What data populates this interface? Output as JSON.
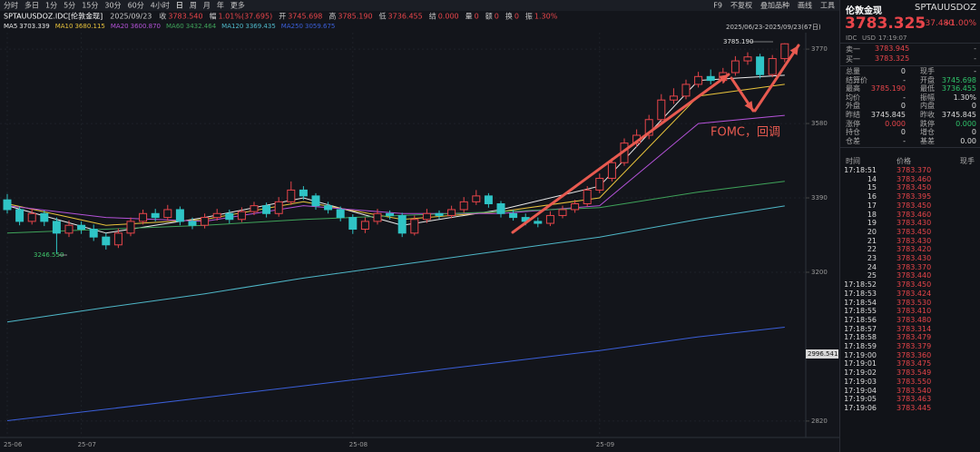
{
  "toolbar": {
    "periods": [
      "分时",
      "多日",
      "1分",
      "5分",
      "15分",
      "30分",
      "60分",
      "4小时",
      "日",
      "周",
      "月",
      "年",
      "更多"
    ],
    "tools": [
      "F9",
      "不复权",
      "叠加品种",
      "画线",
      "工具"
    ]
  },
  "info_line": {
    "symbol": "SPTAUUSDOZ.IDC[伦敦金现]",
    "date": "2025/09/23",
    "fields": [
      {
        "label": "收",
        "value": "3783.540"
      },
      {
        "label": "幅",
        "value": "1.01%(37.695)"
      },
      {
        "label": "开",
        "value": "3745.698"
      },
      {
        "label": "高",
        "value": "3785.190"
      },
      {
        "label": "低",
        "value": "3736.455"
      },
      {
        "label": "结",
        "value": "0.000"
      },
      {
        "label": "量",
        "value": "0"
      },
      {
        "label": "额",
        "value": "0"
      },
      {
        "label": "换",
        "value": "0"
      },
      {
        "label": "振",
        "value": "1.30%"
      }
    ]
  },
  "date_range": "2025/06/23-2025/09/23(67日)",
  "chart_data": {
    "type": "candlestick",
    "categories": [
      "25-06",
      null,
      null,
      null,
      null,
      null,
      "25-07",
      null,
      null,
      null,
      null,
      null,
      null,
      null,
      null,
      null,
      null,
      null,
      null,
      null,
      null,
      null,
      null,
      null,
      null,
      null,
      null,
      null,
      "25-08",
      null,
      null,
      null,
      null,
      null,
      null,
      null,
      null,
      null,
      null,
      null,
      null,
      null,
      null,
      null,
      null,
      null,
      null,
      null,
      "25-09",
      null,
      null,
      null,
      null,
      null,
      null,
      null,
      null,
      null,
      null,
      null,
      null,
      null,
      null,
      null
    ],
    "open": [
      3385,
      3360,
      3330,
      3350,
      3330,
      3300,
      3320,
      3310,
      3290,
      3270,
      3300,
      3330,
      3350,
      3340,
      3360,
      3330,
      3320,
      3340,
      3350,
      3335,
      3355,
      3370,
      3350,
      3380,
      3410,
      3395,
      3370,
      3360,
      3340,
      3310,
      3330,
      3350,
      3345,
      3300,
      3335,
      3350,
      3345,
      3360,
      3380,
      3395,
      3375,
      3350,
      3340,
      3330,
      3325,
      3345,
      3360,
      3375,
      3410,
      3440,
      3480,
      3530,
      3550,
      3590,
      3640,
      3650,
      3680,
      3700,
      3690,
      3710,
      3740,
      3750,
      3705,
      3745.698
    ],
    "high": [
      3400,
      3368,
      3362,
      3358,
      3340,
      3332,
      3330,
      3322,
      3300,
      3312,
      3340,
      3360,
      3362,
      3372,
      3368,
      3340,
      3350,
      3362,
      3360,
      3366,
      3380,
      3378,
      3392,
      3432,
      3420,
      3402,
      3380,
      3368,
      3348,
      3340,
      3362,
      3358,
      3352,
      3345,
      3362,
      3358,
      3370,
      3392,
      3410,
      3402,
      3382,
      3360,
      3350,
      3340,
      3356,
      3370,
      3385,
      3420,
      3452,
      3492,
      3542,
      3565,
      3602,
      3655,
      3670,
      3692,
      3712,
      3718,
      3722,
      3752,
      3762,
      3758,
      3755,
      3785.19
    ],
    "low": [
      3350,
      3320,
      3322,
      3318,
      3246.55,
      3290,
      3298,
      3280,
      3258,
      3262,
      3292,
      3322,
      3330,
      3332,
      3320,
      3310,
      3312,
      3332,
      3325,
      3328,
      3346,
      3340,
      3342,
      3372,
      3385,
      3360,
      3350,
      3330,
      3298,
      3300,
      3322,
      3335,
      3290,
      3294,
      3326,
      3336,
      3338,
      3352,
      3372,
      3365,
      3340,
      3332,
      3320,
      3315,
      3318,
      3338,
      3352,
      3368,
      3402,
      3432,
      3472,
      3520,
      3540,
      3582,
      3630,
      3642,
      3672,
      3680,
      3682,
      3702,
      3730,
      3695,
      3698,
      3736.455
    ],
    "close": [
      3360,
      3330,
      3350,
      3330,
      3300,
      3320,
      3310,
      3290,
      3270,
      3300,
      3330,
      3350,
      3340,
      3360,
      3330,
      3320,
      3340,
      3350,
      3335,
      3355,
      3370,
      3350,
      3380,
      3410,
      3395,
      3370,
      3360,
      3340,
      3310,
      3330,
      3350,
      3345,
      3300,
      3335,
      3350,
      3345,
      3360,
      3380,
      3395,
      3375,
      3350,
      3340,
      3330,
      3325,
      3345,
      3360,
      3375,
      3410,
      3440,
      3480,
      3530,
      3550,
      3590,
      3640,
      3650,
      3680,
      3700,
      3690,
      3710,
      3740,
      3750,
      3705,
      3745.845,
      3783.54
    ],
    "up_color": "#e8454a",
    "down_color": "#2fc4c6",
    "ylim": [
      2778,
      3812
    ],
    "yticks": [
      2820,
      3200,
      3390,
      3580,
      3770
    ],
    "grid": true,
    "series": [
      {
        "name": "MA5",
        "last": "3703.339",
        "color": "#e9e9e9",
        "x": [
          0,
          8,
          16,
          24,
          32,
          40,
          48,
          56,
          63
        ],
        "values": [
          3370,
          3300,
          3340,
          3390,
          3320,
          3360,
          3420,
          3690,
          3703.339
        ]
      },
      {
        "name": "MA10",
        "last": "3680.115",
        "color": "#e8c33c",
        "x": [
          0,
          8,
          16,
          24,
          32,
          40,
          48,
          56,
          63
        ],
        "values": [
          3375,
          3320,
          3335,
          3380,
          3335,
          3355,
          3390,
          3650,
          3680.115
        ]
      },
      {
        "name": "MA20",
        "last": "3600.870",
        "color": "#b452d8",
        "x": [
          0,
          8,
          16,
          24,
          32,
          40,
          48,
          56,
          63
        ],
        "values": [
          3370,
          3340,
          3330,
          3370,
          3350,
          3350,
          3370,
          3580,
          3600.87
        ]
      },
      {
        "name": "MA60",
        "last": "3432.464",
        "color": "#3fa35a",
        "x": [
          0,
          8,
          16,
          24,
          32,
          40,
          48,
          56,
          63
        ],
        "values": [
          3300,
          3310,
          3320,
          3335,
          3345,
          3355,
          3365,
          3405,
          3432.464
        ]
      },
      {
        "name": "MA120",
        "last": "3369.435",
        "color": "#4fb8c9",
        "x": [
          0,
          8,
          16,
          24,
          32,
          40,
          48,
          56,
          63
        ],
        "values": [
          3073,
          3110,
          3145,
          3185,
          3220,
          3255,
          3290,
          3335,
          3369.435
        ]
      },
      {
        "name": "MA250",
        "last": "3059.675",
        "color": "#3b5fd9",
        "x": [
          0,
          8,
          16,
          24,
          32,
          40,
          48,
          56,
          63
        ],
        "values": [
          2821,
          2850,
          2880,
          2910,
          2940,
          2970,
          3000,
          3035,
          3059.675
        ]
      }
    ],
    "high_label": "3785.190",
    "low_label": "3246.550",
    "cursor_label": "2996.541",
    "annotation": "FOMC，回调"
  },
  "quote": {
    "name": "伦敦金现",
    "code": "SPTAUUSDOZ",
    "price": "3783.325",
    "change": "+37.480",
    "change_pct": "+1.00%",
    "source": "IDC",
    "currency": "USD",
    "time": "17:19:07",
    "book": [
      {
        "label": "卖一",
        "price": "3783.945",
        "volume": "-"
      },
      {
        "label": "买一",
        "price": "3783.325",
        "volume": "-"
      }
    ],
    "stats": [
      [
        {
          "label": "总量",
          "value": "0"
        },
        {
          "label": "现手",
          "value": "-"
        }
      ],
      [
        {
          "label": "结算价",
          "value": "-"
        },
        {
          "label": "开盘",
          "value": "3745.698",
          "color": "#2fc46a"
        }
      ],
      [
        {
          "label": "最高",
          "value": "3785.190",
          "color": "#e8454a"
        },
        {
          "label": "最低",
          "value": "3736.455",
          "color": "#2fc46a"
        }
      ],
      [
        {
          "label": "均价",
          "value": "-"
        },
        {
          "label": "振幅",
          "value": "1.30%"
        }
      ],
      [
        {
          "label": "外盘",
          "value": "0"
        },
        {
          "label": "内盘",
          "value": "0"
        }
      ],
      [
        {
          "label": "昨结",
          "value": "3745.845"
        },
        {
          "label": "昨收",
          "value": "3745.845"
        }
      ],
      [
        {
          "label": "涨停",
          "value": "0.000",
          "color": "#e8454a"
        },
        {
          "label": "跌停",
          "value": "0.000",
          "color": "#2fc46a"
        }
      ],
      [
        {
          "label": "持仓",
          "value": "0"
        },
        {
          "label": "增仓",
          "value": "0"
        }
      ],
      [
        {
          "label": "仓差",
          "value": "-"
        },
        {
          "label": "基差",
          "value": "0.00"
        }
      ]
    ]
  },
  "ticks": {
    "headers": [
      "时间",
      "价格",
      "现手"
    ],
    "rows": [
      [
        "17:18:51",
        "3783.370"
      ],
      [
        "14",
        "3783.460"
      ],
      [
        "15",
        "3783.450"
      ],
      [
        "16",
        "3783.395"
      ],
      [
        "17",
        "3783.450"
      ],
      [
        "18",
        "3783.460"
      ],
      [
        "19",
        "3783.430"
      ],
      [
        "20",
        "3783.450"
      ],
      [
        "21",
        "3783.430"
      ],
      [
        "22",
        "3783.420"
      ],
      [
        "23",
        "3783.430"
      ],
      [
        "24",
        "3783.370"
      ],
      [
        "25",
        "3783.440"
      ],
      [
        "17:18:52",
        "3783.450"
      ],
      [
        "17:18:53",
        "3783.424"
      ],
      [
        "17:18:54",
        "3783.530"
      ],
      [
        "17:18:55",
        "3783.410"
      ],
      [
        "17:18:56",
        "3783.480"
      ],
      [
        "17:18:57",
        "3783.314"
      ],
      [
        "17:18:58",
        "3783.479"
      ],
      [
        "17:18:59",
        "3783.379"
      ],
      [
        "17:19:00",
        "3783.360"
      ],
      [
        "17:19:01",
        "3783.475"
      ],
      [
        "17:19:02",
        "3783.549"
      ],
      [
        "17:19:03",
        "3783.550"
      ],
      [
        "17:19:04",
        "3783.540"
      ],
      [
        "17:19:05",
        "3783.463"
      ],
      [
        "17:19:06",
        "3783.445"
      ]
    ]
  }
}
